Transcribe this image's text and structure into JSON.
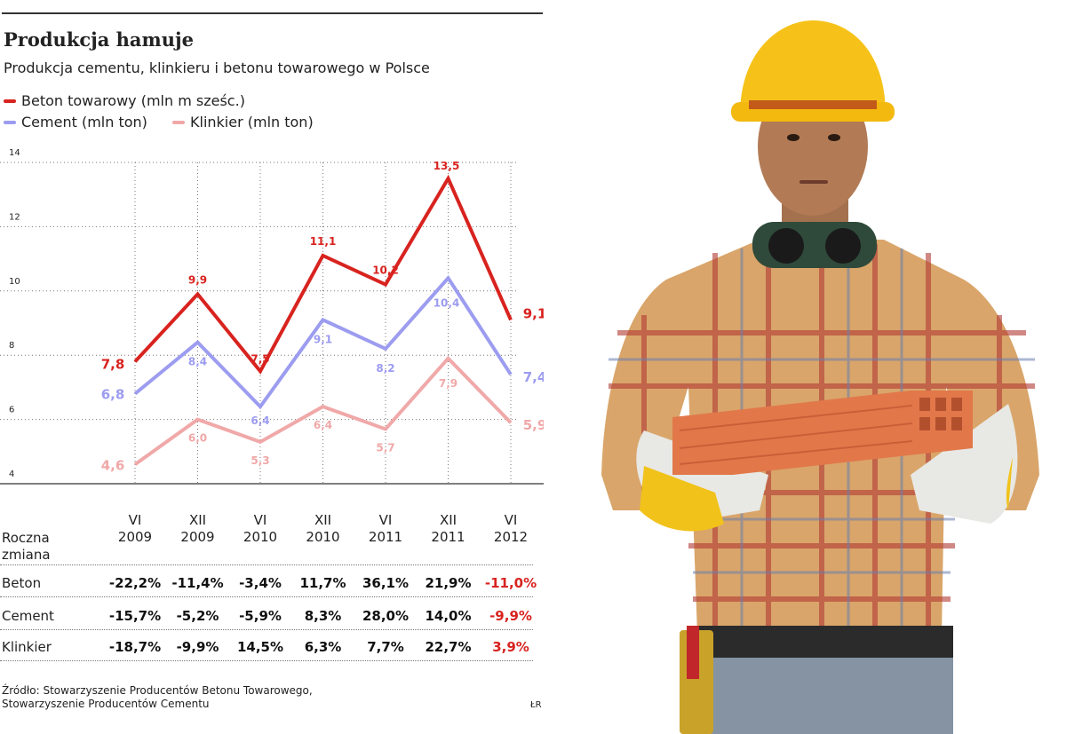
{
  "header": {
    "title": "Produkcja hamuje",
    "subtitle": "Produkcja cementu, klinkieru i betonu towarowego w Polsce"
  },
  "legend": [
    {
      "label": "Beton towarowy (mln m sześc.)",
      "color": "#d8231f"
    },
    {
      "label": "Cement (mln ton)",
      "color": "#9c9cf0"
    },
    {
      "label": "Klinkier (mln ton)",
      "color": "#f0a8a8"
    }
  ],
  "chart_data": {
    "type": "line",
    "title": "Produkcja hamuje",
    "subtitle": "Produkcja cementu, klinkieru i betonu towarowego w Polsce",
    "categories": [
      "VI 2009",
      "XII 2009",
      "VI 2010",
      "XII 2010",
      "VI 2011",
      "XII 2011",
      "VI 2012"
    ],
    "category_lines": [
      [
        "VI",
        "2009"
      ],
      [
        "XII",
        "2009"
      ],
      [
        "VI",
        "2010"
      ],
      [
        "XII",
        "2010"
      ],
      [
        "VI",
        "2011"
      ],
      [
        "XII",
        "2011"
      ],
      [
        "VI",
        "2012"
      ]
    ],
    "ylim": [
      4,
      14
    ],
    "yticks": [
      4,
      6,
      8,
      10,
      12,
      14
    ],
    "grid": true,
    "legend_position": "top-left",
    "series": [
      {
        "name": "Beton towarowy (mln m sześc.)",
        "color": "#d8231f",
        "values": [
          7.8,
          9.9,
          7.5,
          11.1,
          10.2,
          13.5,
          9.1
        ],
        "labels": [
          "7,8",
          "9,9",
          "7,5",
          "11,1",
          "10,2",
          "13,5",
          "9,1"
        ]
      },
      {
        "name": "Cement (mln ton)",
        "color": "#9c9cf0",
        "values": [
          6.8,
          8.4,
          6.4,
          9.1,
          8.2,
          10.4,
          7.4
        ],
        "labels": [
          "6,8",
          "8,4",
          "6,4",
          "9,1",
          "8,2",
          "10,4",
          "7,4"
        ]
      },
      {
        "name": "Klinkier (mln ton)",
        "color": "#f0a8a8",
        "values": [
          4.6,
          6.0,
          5.3,
          6.4,
          5.7,
          7.9,
          5.9
        ],
        "labels": [
          "4,6",
          "6,0",
          "5,3",
          "6,4",
          "5,7",
          "7,9",
          "5,9"
        ]
      }
    ]
  },
  "table": {
    "header_label": [
      "Roczna",
      "zmiana"
    ],
    "rows": [
      {
        "label": "Beton",
        "values": [
          "-22,2%",
          "-11,4%",
          "-3,4%",
          "11,7%",
          "36,1%",
          "21,9%",
          "-11,0%"
        ]
      },
      {
        "label": "Cement",
        "values": [
          "-15,7%",
          "-5,2%",
          "-5,9%",
          "8,3%",
          "28,0%",
          "14,0%",
          "-9,9%"
        ]
      },
      {
        "label": "Klinkier",
        "values": [
          "-18,7%",
          "-9,9%",
          "14,5%",
          "6,3%",
          "7,7%",
          "22,7%",
          "3,9%"
        ]
      }
    ],
    "highlight_color": "#d8231f"
  },
  "source": {
    "line1": "Źródło: Stowarzyszenie Producentów Betonu Towarowego,",
    "line2": "Stowarzyszenie Producentów Cementu"
  },
  "signature": "ŁR",
  "photo": {
    "subject": "construction-worker-holding-brick",
    "colors": {
      "helmet": "#f6c21a",
      "shirt": "#d9a56a",
      "brick": "#e2784a",
      "jeans": "#8593a3"
    }
  }
}
